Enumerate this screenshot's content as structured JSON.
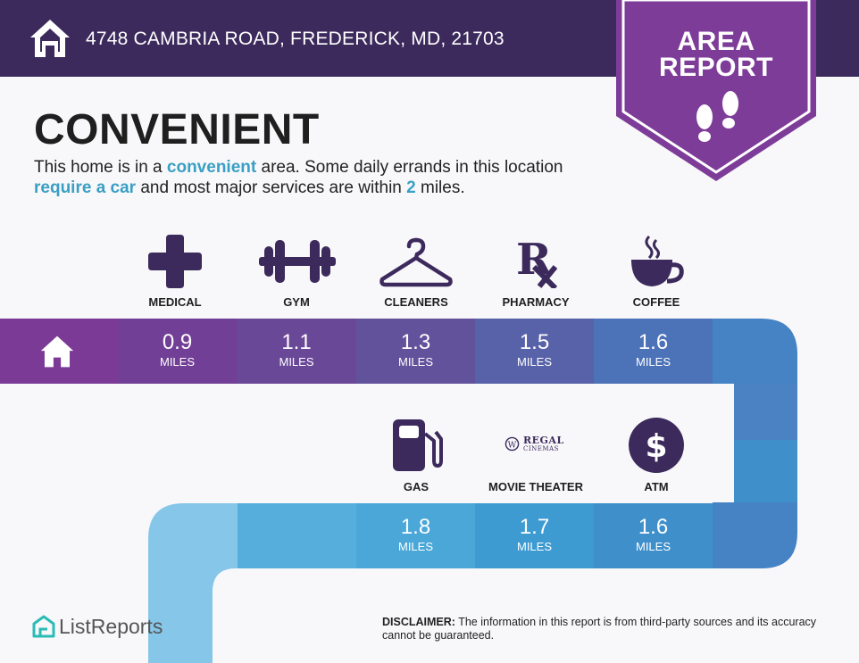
{
  "header": {
    "address": "4748 CAMBRIA ROAD, FREDERICK, MD, 21703",
    "icon": "house-icon"
  },
  "badge": {
    "line1": "AREA",
    "line2": "REPORT",
    "icon": "footprints-icon"
  },
  "summary": {
    "title": "CONVENIENT",
    "parts": [
      {
        "text": "This home is in a ",
        "hl": false
      },
      {
        "text": "convenient",
        "hl": true
      },
      {
        "text": " area. Some daily errands in this location ",
        "hl": false
      },
      {
        "text": "require a car",
        "hl": true
      },
      {
        "text": " and most major services are within ",
        "hl": false
      },
      {
        "text": "2",
        "hl": true
      },
      {
        "text": " miles.",
        "hl": false
      }
    ]
  },
  "row1": [
    {
      "label": "MEDICAL",
      "value": "0.9",
      "unit": "MILES",
      "icon": "medical-cross-icon"
    },
    {
      "label": "GYM",
      "value": "1.1",
      "unit": "MILES",
      "icon": "dumbbell-icon"
    },
    {
      "label": "CLEANERS",
      "value": "1.3",
      "unit": "MILES",
      "icon": "hanger-icon"
    },
    {
      "label": "PHARMACY",
      "value": "1.5",
      "unit": "MILES",
      "icon": "rx-icon"
    },
    {
      "label": "COFFEE",
      "value": "1.6",
      "unit": "MILES",
      "icon": "coffee-cup-icon"
    }
  ],
  "row2": [
    {
      "label": "GAS",
      "value": "1.8",
      "unit": "MILES",
      "icon": "gas-pump-icon"
    },
    {
      "label": "MOVIE THEATER",
      "value": "1.7",
      "unit": "MILES",
      "icon": "regal-cinemas-logo",
      "logo_text": "REGAL",
      "logo_sub": "CINEMAS"
    },
    {
      "label": "ATM",
      "value": "1.6",
      "unit": "MILES",
      "icon": "dollar-circle-icon"
    }
  ],
  "colors": {
    "header": "#3c2a5c",
    "badge": "#7e3c99",
    "purple": "#7b3a95",
    "blue": "#3f8fcb",
    "light_blue": "#86c6e8",
    "highlight": "#3a9fc4"
  },
  "footer": {
    "brand": "ListReports",
    "disclaimer_label": "DISCLAIMER:",
    "disclaimer_text": " The information in this report is from third-party sources and its accuracy cannot be guaranteed."
  }
}
